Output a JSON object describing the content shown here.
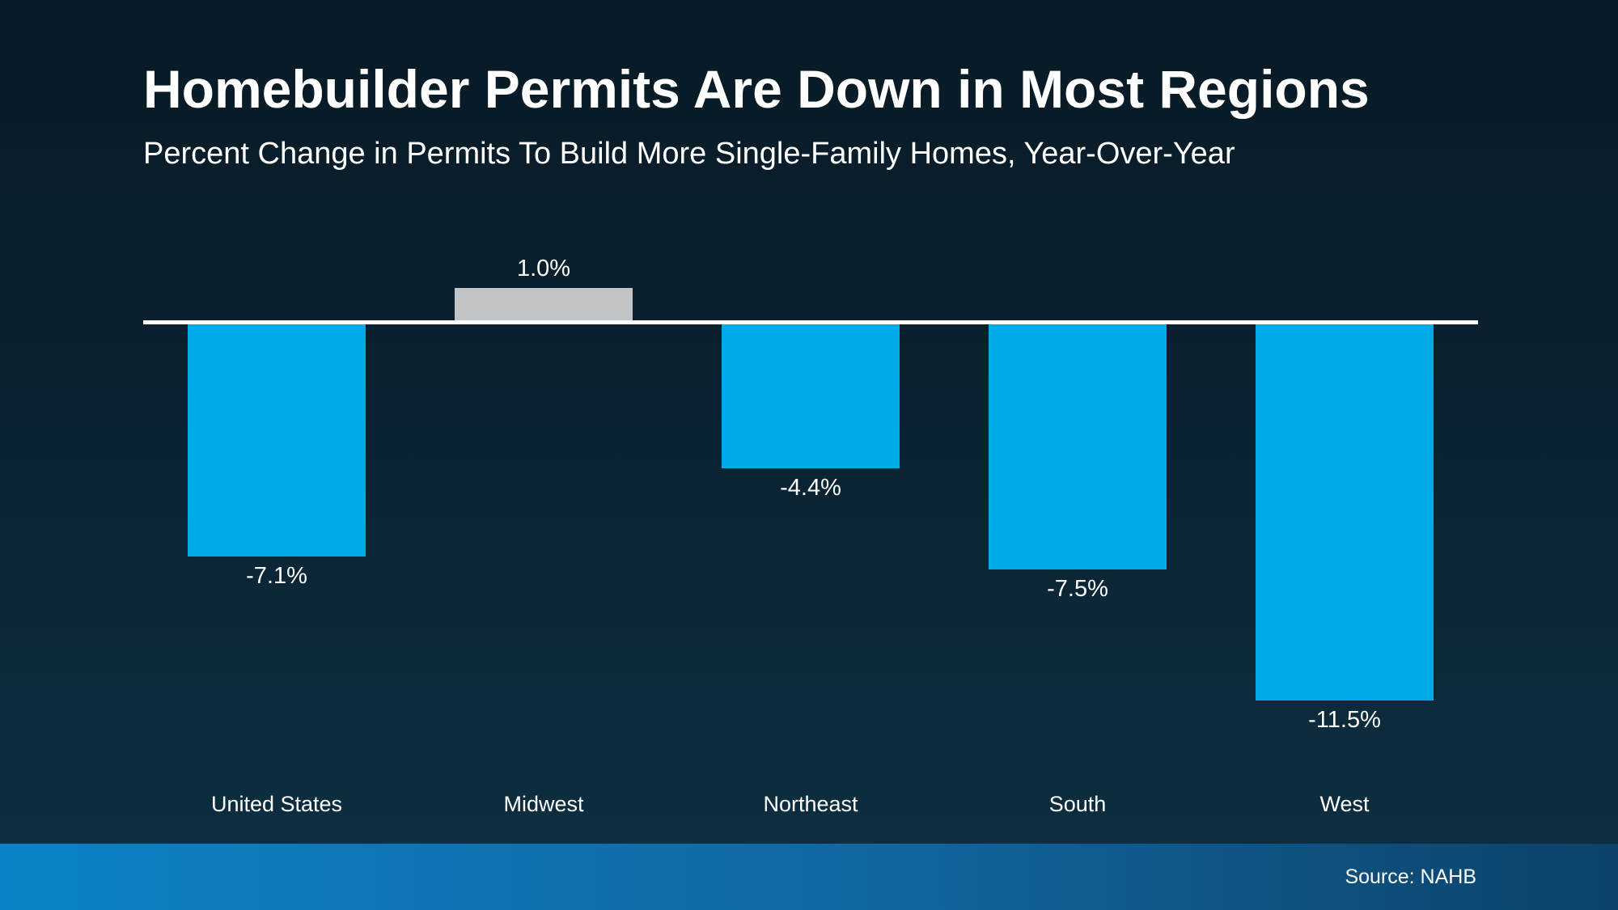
{
  "chart_data": {
    "type": "bar",
    "title": "Homebuilder Permits Are Down in Most Regions",
    "subtitle": "Percent Change in Permits To Build More Single-Family Homes, Year-Over-Year",
    "categories": [
      "United States",
      "Midwest",
      "Northeast",
      "South",
      "West"
    ],
    "values": [
      -7.1,
      1.0,
      -4.4,
      -7.5,
      -11.5
    ],
    "value_labels": [
      "-7.1%",
      "1.0%",
      "-4.4%",
      "-7.5%",
      "-11.5%"
    ],
    "unit": "percent change year-over-year",
    "baseline": 0,
    "ylim": [
      -12,
      2
    ],
    "gridlines": false,
    "legend": "none",
    "bar_colors": [
      "#00ACE8",
      "#C1C4C6",
      "#00ACE8",
      "#00ACE8",
      "#00ACE8"
    ],
    "negative_color": "#00ACE8",
    "positive_color": "#C1C4C6",
    "axis_line_color": "#FFFFFF",
    "label_color": "#FFFFFF"
  },
  "footer": {
    "source": "Source: NAHB",
    "gradient_left": "#0C83C8",
    "gradient_mid": "#11669F",
    "gradient_right": "#0C4269"
  },
  "background": {
    "top": "#081A25",
    "middle": "#0A2130",
    "bottom": "#0D3042"
  }
}
